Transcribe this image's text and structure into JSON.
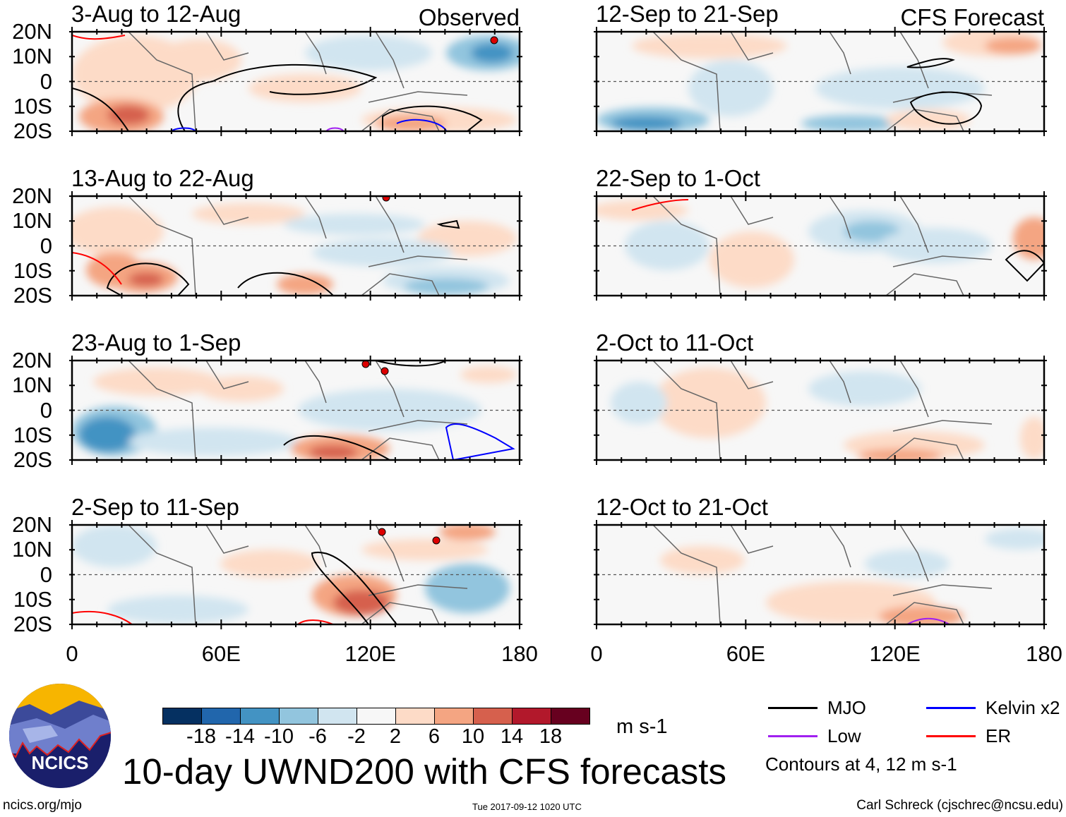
{
  "panels": [
    {
      "title": "3-Aug to 12-Aug",
      "tag": "Observed"
    },
    {
      "title": "13-Aug to 22-Aug"
    },
    {
      "title": "23-Aug to 1-Sep"
    },
    {
      "title": "2-Sep to 11-Sep"
    },
    {
      "title": "12-Sep to 21-Sep",
      "tag": "CFS Forecast"
    },
    {
      "title": "22-Sep to 1-Oct"
    },
    {
      "title": "2-Oct to 11-Oct"
    },
    {
      "title": "12-Oct to 21-Oct"
    }
  ],
  "chart_data": {
    "type": "heatmap",
    "title": "10-day UWND200 with CFS forecasts",
    "variable": "200 hPa zonal wind anomaly",
    "units": "m s-1",
    "lat_ticks": [
      "20N",
      "10N",
      "0",
      "10S",
      "20S"
    ],
    "lon_ticks": [
      "0",
      "60E",
      "120E",
      "180"
    ],
    "lat_range": [
      -20,
      20
    ],
    "lon_range": [
      0,
      180
    ],
    "colorbar": {
      "labels": [
        "-18",
        "-14",
        "-10",
        "-6",
        "-2",
        "2",
        "6",
        "10",
        "14",
        "18"
      ],
      "colors": [
        "#053061",
        "#2166ac",
        "#4393c3",
        "#92c5de",
        "#d1e5f0",
        "#f7f7f7",
        "#fddbc7",
        "#f4a582",
        "#d6604d",
        "#b2182b",
        "#67001f"
      ]
    },
    "legend": [
      {
        "label": "MJO",
        "color": "#000000"
      },
      {
        "label": "Kelvin x2",
        "color": "#0000ff"
      },
      {
        "label": "Low",
        "color": "#a020f0"
      },
      {
        "label": "ER",
        "color": "#ff0000"
      }
    ],
    "contour_note": "Contours at 4, 12 m s-1"
  },
  "footer": {
    "logo_text": "NCICS",
    "url": "ncics.org/mjo",
    "timestamp": "Tue 2017-09-12 1020 UTC",
    "author": "Carl Schreck (cjschrec@ncsu.edu)"
  }
}
